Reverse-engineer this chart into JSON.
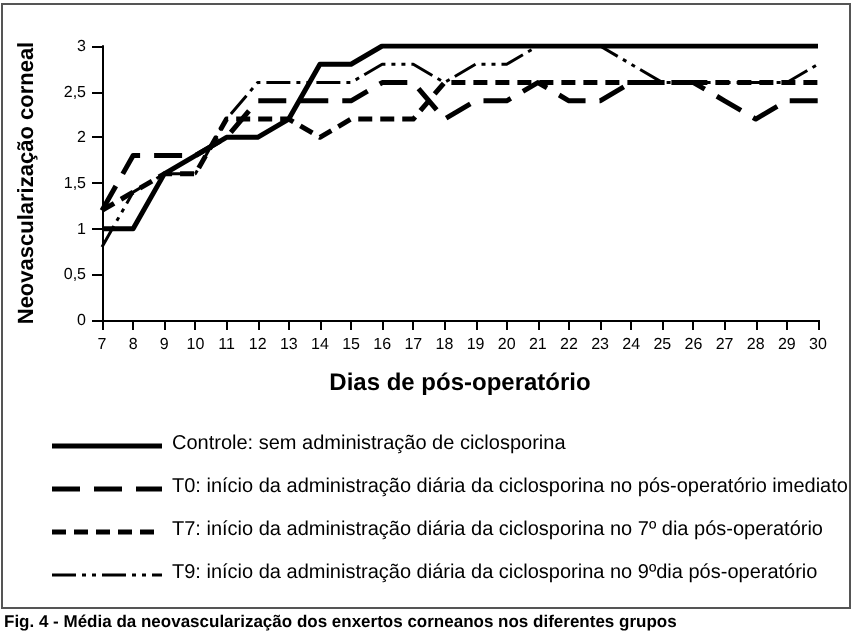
{
  "chart_data": {
    "type": "line",
    "xlabel": "Dias de pós-operatório",
    "ylabel": "Neovascularização corneal",
    "categories": [
      "7",
      "8",
      "9",
      "10",
      "11",
      "12",
      "13",
      "14",
      "15",
      "16",
      "17",
      "18",
      "19",
      "20",
      "21",
      "22",
      "23",
      "24",
      "25",
      "26",
      "27",
      "28",
      "29",
      "30"
    ],
    "series": [
      {
        "name": "Controle: sem administração de ciclosporina",
        "color": "#000000",
        "line_style": "solid",
        "values": [
          1,
          1,
          1.6,
          1.8,
          2,
          2,
          2.2,
          2.8,
          2.8,
          3,
          3,
          3,
          3,
          3,
          3,
          3,
          3,
          3,
          3,
          3,
          3,
          3,
          3,
          3
        ]
      },
      {
        "name": "T0: início da administração diária da ciclosporina no pós-operatório imediato",
        "color": "#000000",
        "line_style": "longdash",
        "values": [
          1.2,
          1.8,
          1.8,
          1.8,
          2,
          2.4,
          2.4,
          2.4,
          2.4,
          2.6,
          2.6,
          2.2,
          2.4,
          2.4,
          2.6,
          2.4,
          2.4,
          2.6,
          2.6,
          2.6,
          2.4,
          2.2,
          2.4,
          2.4
        ]
      },
      {
        "name": "T7: início da administração diária da ciclosporina no 7º dia pós-operatório",
        "color": "#000000",
        "line_style": "dashed",
        "values": [
          1.2,
          1.4,
          1.6,
          1.6,
          2.2,
          2.2,
          2.2,
          2,
          2.2,
          2.2,
          2.2,
          2.6,
          2.6,
          2.6,
          2.6,
          2.6,
          2.6,
          2.6,
          2.6,
          2.6,
          2.6,
          2.6,
          2.6,
          2.6
        ]
      },
      {
        "name": "T9: início da administração diária da ciclosporina no 9ºdia pós-operatório",
        "color": "#000000",
        "line_style": "dashdot",
        "values": [
          0.8,
          1.4,
          1.6,
          1.6,
          2.2,
          2.6,
          2.6,
          2.6,
          2.6,
          2.8,
          2.8,
          2.6,
          2.8,
          2.8,
          3,
          3,
          3,
          2.8,
          2.6,
          2.6,
          2.6,
          2.6,
          2.6,
          2.8
        ]
      }
    ],
    "ylim": [
      0,
      3
    ],
    "yticks": [
      0,
      {
        "value": 0.5,
        "label": "0,5"
      },
      1,
      {
        "value": 1.5,
        "label": "1,5"
      },
      2,
      {
        "value": 2.5,
        "label": "2,5"
      },
      3
    ],
    "grid": false,
    "legend": "bottom",
    "marker": "none",
    "annotations": [
      "Fig. 4 - Média da neovascularização dos enxertos corneanos nos diferentes grupos"
    ]
  }
}
